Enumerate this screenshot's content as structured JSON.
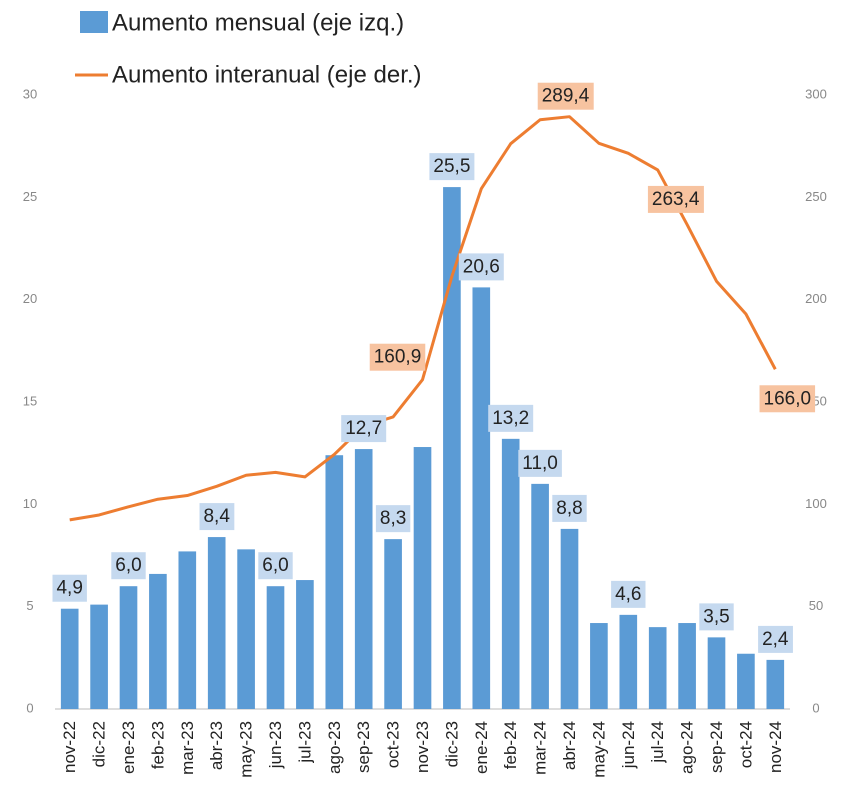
{
  "chart_data": {
    "type": "bar",
    "categories": [
      "nov-22",
      "dic-22",
      "ene-23",
      "feb-23",
      "mar-23",
      "abr-23",
      "may-23",
      "jun-23",
      "jul-23",
      "ago-23",
      "sep-23",
      "oct-23",
      "nov-23",
      "dic-23",
      "ene-24",
      "feb-24",
      "mar-24",
      "abr-24",
      "may-24",
      "jun-24",
      "jul-24",
      "ago-24",
      "sep-24",
      "oct-24",
      "nov-24"
    ],
    "series": [
      {
        "name": "Aumento mensual (eje izq.)",
        "type": "bar",
        "color": "#5b9bd5",
        "values": [
          4.9,
          5.1,
          6.0,
          6.6,
          7.7,
          8.4,
          7.8,
          6.0,
          6.3,
          12.4,
          12.7,
          8.3,
          12.8,
          25.5,
          20.6,
          13.2,
          11.0,
          8.8,
          4.2,
          4.6,
          4.0,
          4.2,
          3.5,
          2.7,
          2.4
        ],
        "value_labels": [
          "4,9",
          null,
          "6,0",
          null,
          null,
          "8,4",
          null,
          "6,0",
          null,
          null,
          "12,7",
          "8,3",
          null,
          "25,5",
          "20,6",
          "13,2",
          "11,0",
          "8,8",
          null,
          "4,6",
          null,
          null,
          "3,5",
          null,
          "2,4"
        ]
      },
      {
        "name": "Aumento interanual (eje der.)",
        "type": "line",
        "color": "#ed7d31",
        "axis": "y2",
        "values": [
          92.4,
          94.8,
          98.8,
          102.5,
          104.3,
          108.8,
          114.2,
          115.6,
          113.4,
          124.4,
          138.3,
          142.7,
          160.9,
          211.4,
          254.2,
          276.2,
          287.9,
          289.4,
          276.4,
          271.5,
          263.4,
          236.7,
          209.0,
          193.0,
          166.0
        ],
        "value_labels": [
          null,
          null,
          null,
          null,
          null,
          null,
          null,
          null,
          null,
          null,
          null,
          null,
          "160,9",
          null,
          null,
          null,
          null,
          "289,4",
          null,
          null,
          "263,4",
          null,
          null,
          null,
          "166,0"
        ]
      }
    ],
    "ylim": [
      0,
      30
    ],
    "yticks": [
      0,
      5,
      10,
      15,
      20,
      25,
      30
    ],
    "y2lim": [
      0,
      300
    ],
    "y2ticks": [
      0,
      50,
      100,
      150,
      200,
      250,
      300
    ],
    "grid": false
  }
}
